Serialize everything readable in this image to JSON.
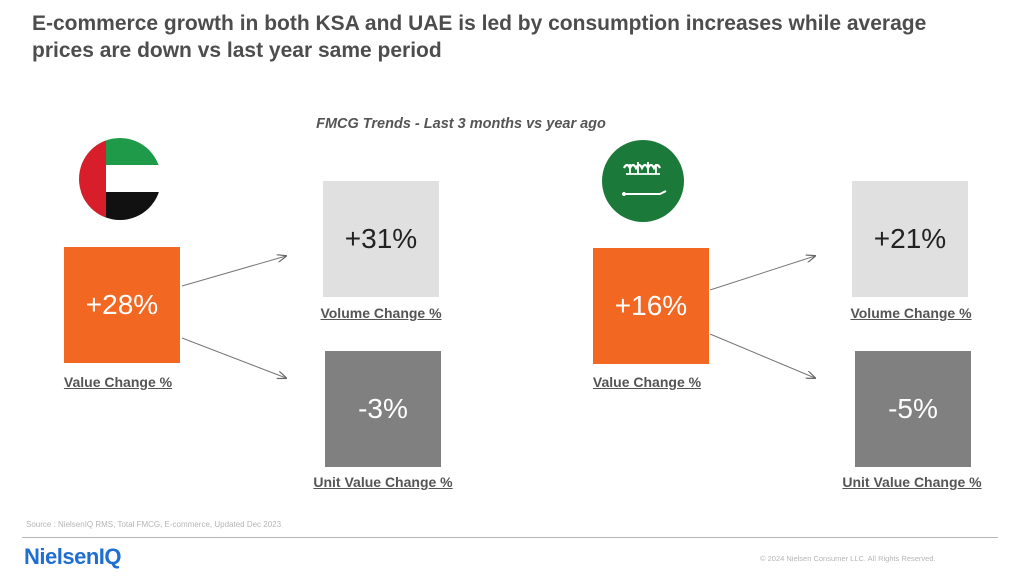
{
  "title": "E-commerce growth in both KSA and UAE is led by consumption increases while average prices are down vs last year same period",
  "subtitle": "FMCG Trends - Last 3 months vs year ago",
  "uae": {
    "flag_icon": "uae-flag-icon",
    "value_change": "+28%",
    "value_label": "Value Change %",
    "volume_change": "+31%",
    "volume_label": "Volume Change %",
    "unit_value_change": "-3%",
    "unit_value_label": "Unit Value Change %"
  },
  "ksa": {
    "flag_icon": "ksa-flag-icon",
    "value_change": "+16%",
    "value_label": "Value Change %",
    "volume_change": "+21%",
    "volume_label": "Volume Change %",
    "unit_value_change": "-5%",
    "unit_value_label": "Unit Value Change %"
  },
  "colors": {
    "orange": "#f26722",
    "light_grey": "#e0e0e0",
    "dark_grey": "#808080",
    "brand_blue": "#1f6fd1"
  },
  "footer": {
    "source": "Source : NielsenIQ RMS, Total FMCG, E-commerce, Updated Dec 2023",
    "logo": "NielsenIQ",
    "copyright": "© 2024 Nielsen Consumer LLC. All Rights Reserved."
  }
}
